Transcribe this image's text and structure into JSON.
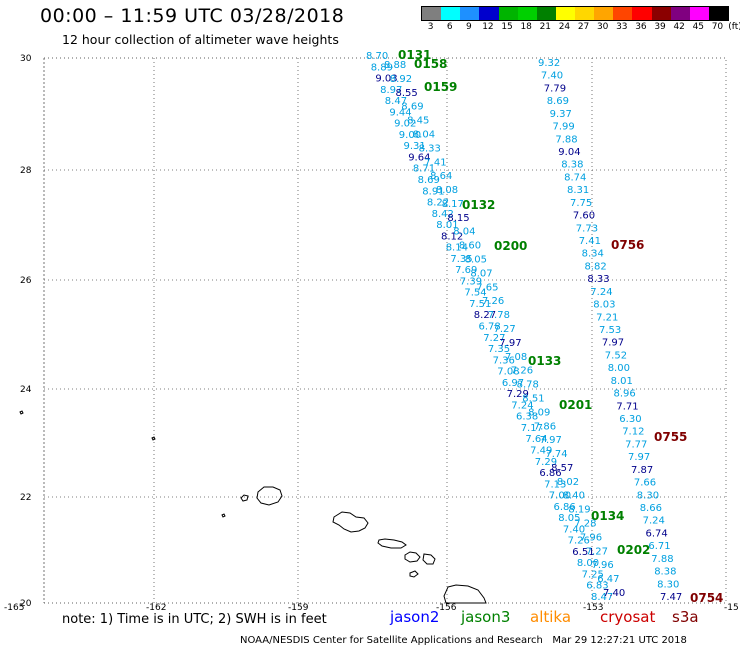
{
  "header": {
    "title": "00:00 – 11:59 UTC 03/28/2018",
    "subtitle": "12 hour collection of altimeter wave heights"
  },
  "colorbar": {
    "unit": "(ft)",
    "labels": [
      "3",
      "6",
      "9",
      "12",
      "15",
      "18",
      "21",
      "24",
      "27",
      "30",
      "33",
      "36",
      "39",
      "42",
      "45",
      "70"
    ],
    "colors": [
      "#7f7f7f",
      "#00ffff",
      "#1e90ff",
      "#0000cd",
      "#00b400",
      "#00d000",
      "#008000",
      "#ffff00",
      "#ffd700",
      "#ffa500",
      "#ff4500",
      "#ff0000",
      "#8b0000",
      "#800080",
      "#ff00ff",
      "#000000"
    ]
  },
  "map": {
    "lat_labels": [
      "30",
      "28",
      "26",
      "24",
      "22",
      "20"
    ],
    "lon_labels": [
      "-165",
      "-162",
      "-159",
      "-156",
      "-153",
      "-15"
    ],
    "track_colors": {
      "jason2": "#0000ff",
      "jason3": "#008000",
      "altika": "#ff8c00",
      "cryosat": "#cc0000",
      "s3a": "#800000"
    },
    "height_colors": {
      "blue": "#00a0e0",
      "navy": "#00008b"
    },
    "time_labels": [
      {
        "text": "0131",
        "sat": "jason3"
      },
      {
        "text": "0158",
        "sat": "jason3"
      },
      {
        "text": "0159",
        "sat": "jason3"
      },
      {
        "text": "0132",
        "sat": "jason3"
      },
      {
        "text": "0200",
        "sat": "jason3"
      },
      {
        "text": "0133",
        "sat": "jason3"
      },
      {
        "text": "0201",
        "sat": "jason3"
      },
      {
        "text": "0134",
        "sat": "jason3"
      },
      {
        "text": "0202",
        "sat": "jason3"
      },
      {
        "text": "0756",
        "sat": "s3a"
      },
      {
        "text": "0755",
        "sat": "s3a"
      },
      {
        "text": "0754",
        "sat": "s3a"
      }
    ],
    "track_a_heights": [
      "8.70",
      "8.89",
      "9.03",
      "8.97",
      "8.47",
      "9.44",
      "9.02",
      "9.00",
      "9.31",
      "9.64",
      "8.71",
      "8.69",
      "8.91",
      "8.22",
      "8.42",
      "8.01",
      "8.12",
      "8.14",
      "7.35",
      "7.69",
      "7.39",
      "7.54",
      "7.51",
      "8.27",
      "6.78",
      "7.27",
      "7.35",
      "7.36",
      "7.08",
      "6.97",
      "7.29",
      "7.24",
      "6.38",
      "7.17",
      "7.64",
      "7.49",
      "7.29",
      "6.86",
      "7.13",
      "7.00",
      "6.86",
      "8.05",
      "7.40",
      "7.26",
      "6.51",
      "8.00",
      "7.25",
      "6.83",
      "8.47"
    ],
    "track_b_heights": [
      "8.88",
      "8.92",
      "8.55",
      "8.69",
      "8.45",
      "8.04",
      "8.33",
      "7.41",
      "8.64",
      "8.08",
      "8.17",
      "8.15",
      "8.04",
      "8.60",
      "8.05",
      "8.07",
      "7.65",
      "7.26",
      "7.78",
      "7.27",
      "7.97",
      "7.08",
      "7.26",
      "8.78",
      "8.51",
      "8.09",
      "7.86",
      "7.97",
      "7.74",
      "8.57",
      "8.02",
      "8.40",
      "8.19",
      "7.28",
      "7.96",
      "7.27",
      "7.96",
      "6.47",
      "7.40"
    ],
    "track_c_heights": [
      "9.32",
      "7.40",
      "7.79",
      "8.69",
      "9.37",
      "7.99",
      "7.88",
      "9.04",
      "8.38",
      "8.74",
      "8.31",
      "7.75",
      "7.60",
      "7.73",
      "7.41",
      "8.34",
      "8.82",
      "8.33",
      "7.24",
      "8.03",
      "7.21",
      "7.53",
      "7.97",
      "7.52",
      "8.00",
      "8.01",
      "8.96",
      "7.71",
      "6.30",
      "7.12",
      "7.77",
      "7.97",
      "7.87",
      "7.66",
      "8.30",
      "8.66",
      "7.24",
      "6.74",
      "6.71",
      "7.88",
      "8.38",
      "8.30",
      "7.47"
    ]
  },
  "legend": {
    "note": "note: 1) Time is in UTC; 2) SWH is in feet",
    "items": [
      {
        "label": "jason2",
        "color": "#0000ff"
      },
      {
        "label": "jason3",
        "color": "#008000"
      },
      {
        "label": "altika",
        "color": "#ff8c00"
      },
      {
        "label": "cryosat",
        "color": "#cc0000"
      },
      {
        "label": "s3a",
        "color": "#800000"
      }
    ]
  },
  "footer": {
    "agency": "NOAA/NESDIS Center for Satellite Applications and Research",
    "timestamp": "Mar 29 12:27:21 UTC 2018"
  }
}
